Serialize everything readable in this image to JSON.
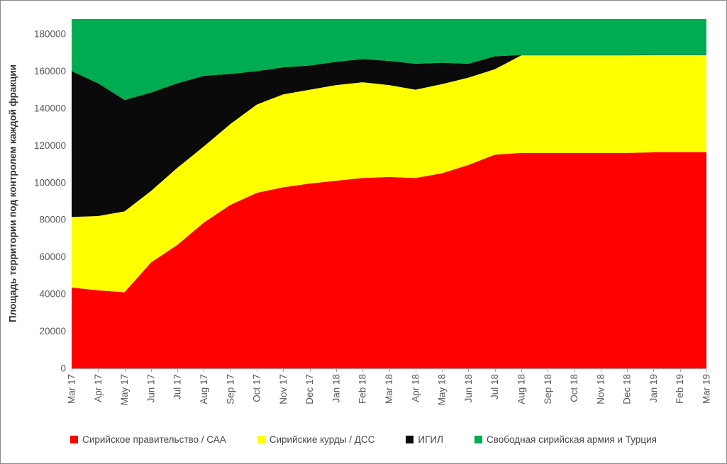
{
  "figure": {
    "background": "#ffffff",
    "border_color": "#8a8a8a",
    "axis_line_color": "#a6a6a6",
    "tick_label_color": "#595959"
  },
  "y_axis": {
    "title": "Площадь территории под контролем каждой фракции",
    "tick_labels": [
      "0",
      "20000",
      "40000",
      "60000",
      "80000",
      "100000",
      "120000",
      "140000",
      "160000",
      "180000"
    ],
    "tick_values": [
      0,
      20000,
      40000,
      60000,
      80000,
      100000,
      120000,
      140000,
      160000,
      180000
    ]
  },
  "chart_data": {
    "type": "area",
    "stacked": true,
    "grid": false,
    "legend_position": "bottom",
    "title": "",
    "xlabel": "",
    "ylabel": "Площадь территории под контролем каждой фракции",
    "ylim": [
      0,
      188000
    ],
    "y_major_unit": 20000,
    "categories": [
      "Mar 17",
      "Apr 17",
      "May 17",
      "Jun 17",
      "Jul 17",
      "Aug 17",
      "Sep 17",
      "Oct 17",
      "Nov 17",
      "Dec 17",
      "Jan 18",
      "Feb 18",
      "Mar 18",
      "Apr 18",
      "May 18",
      "Jun 18",
      "Jul 18",
      "Aug 18",
      "Sep 18",
      "Oct 18",
      "Nov 18",
      "Dec 18",
      "Jan 19",
      "Feb 19",
      "Mar 19"
    ],
    "series": [
      {
        "name": "Сирийское правительство / САА",
        "color": "#FF0000",
        "values": [
          43500,
          42000,
          41000,
          57000,
          66500,
          78500,
          88000,
          94500,
          97500,
          99500,
          101000,
          102500,
          103000,
          102500,
          105000,
          109500,
          115000,
          116000,
          116000,
          116000,
          116000,
          116000,
          116300,
          116300,
          116300
        ]
      },
      {
        "name": "Сирийские курды / ДСС",
        "color": "#FFFF00",
        "values": [
          38000,
          40000,
          43500,
          38500,
          41500,
          41000,
          43500,
          47500,
          50000,
          50500,
          51500,
          51500,
          49500,
          47500,
          48000,
          47000,
          46000,
          52500,
          52500,
          52500,
          52500,
          52500,
          52300,
          52300,
          52300
        ]
      },
      {
        "name": "ИГИЛ",
        "color": "#0A0A0A",
        "values": [
          78500,
          71500,
          60000,
          53000,
          45500,
          38000,
          27000,
          18000,
          14500,
          13000,
          12500,
          12500,
          13000,
          14000,
          11500,
          7500,
          7000,
          200,
          200,
          200,
          200,
          200,
          200,
          200,
          200
        ]
      },
      {
        "name": "Свободная сирийская армия и Турция",
        "color": "#00AC52",
        "values": [
          28000,
          34500,
          43500,
          39500,
          34500,
          30500,
          29500,
          28000,
          26000,
          25000,
          23000,
          21500,
          22500,
          24000,
          23500,
          24000,
          20000,
          19300,
          19300,
          19300,
          19300,
          19300,
          19200,
          19200,
          19200
        ]
      }
    ]
  }
}
